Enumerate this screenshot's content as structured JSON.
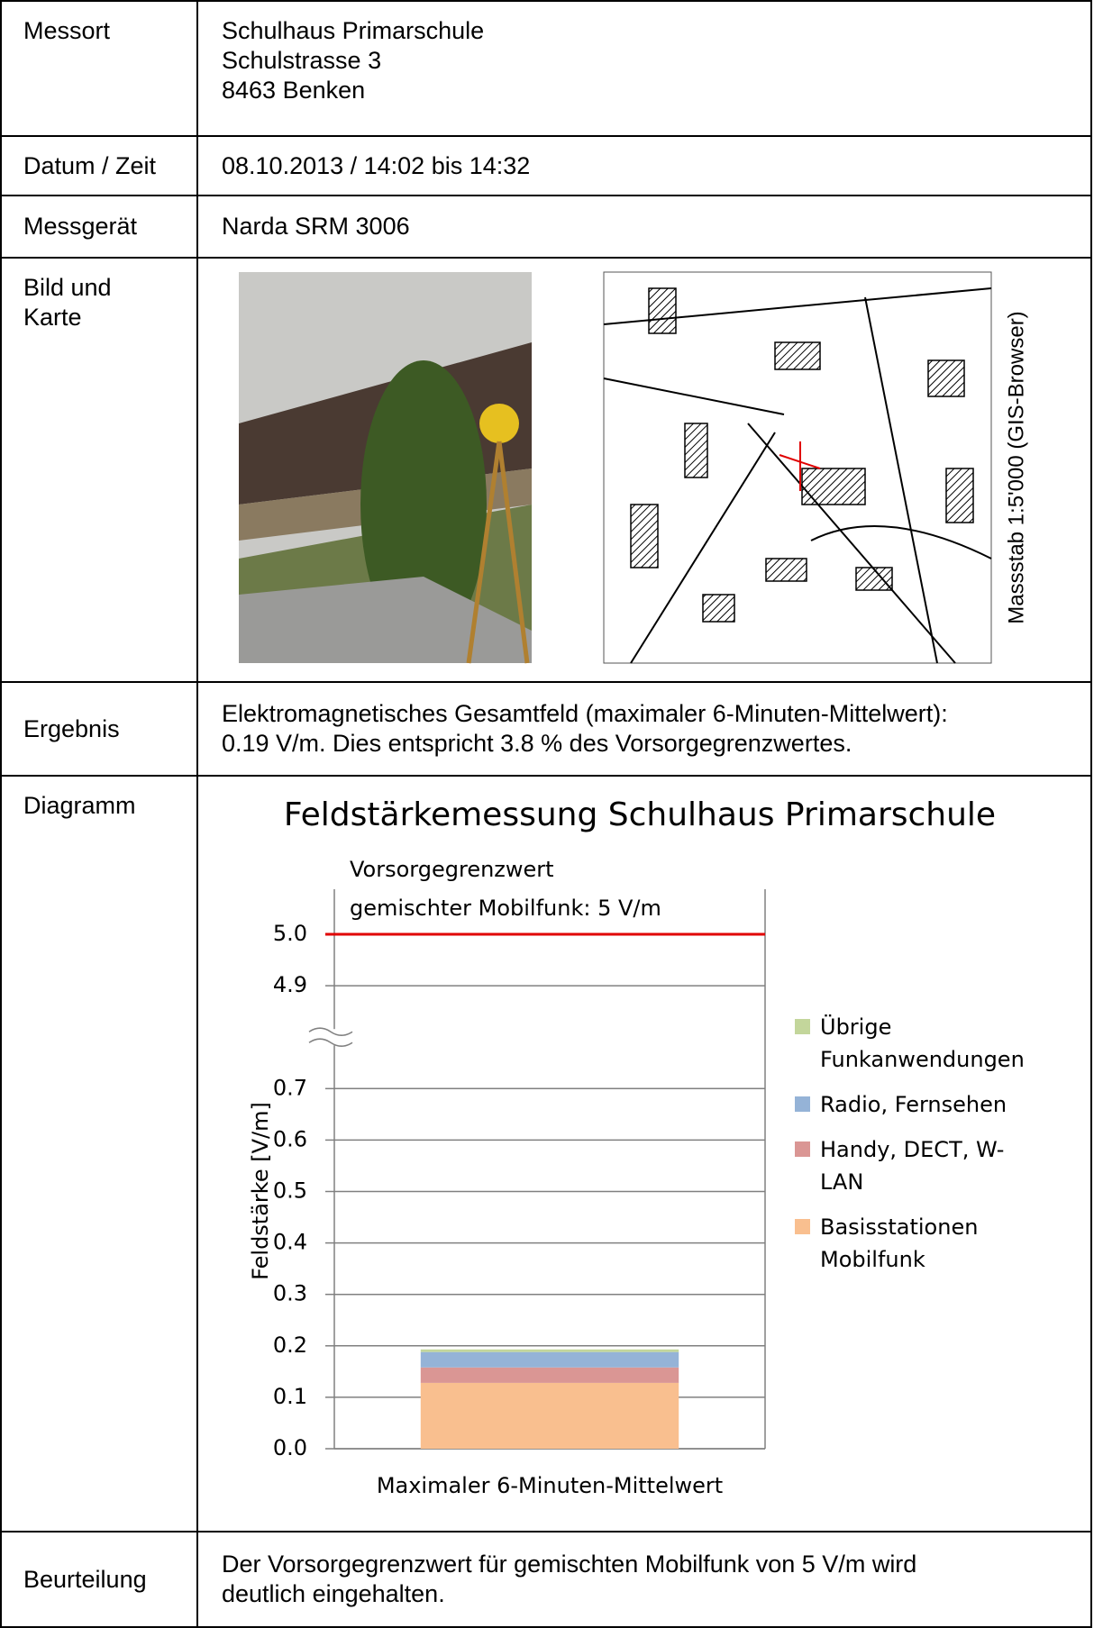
{
  "table": {
    "rows": [
      {
        "label": "Messort",
        "lines": [
          "Schulhaus Primarschule",
          "Schulstrasse 3",
          "8463 Benken"
        ]
      },
      {
        "label": "Datum / Zeit",
        "lines": [
          "08.10.2013 / 14:02 bis 14:32"
        ]
      },
      {
        "label": "Messgerät",
        "lines": [
          "Narda SRM 3006"
        ]
      },
      {
        "label": "Bild und Karte",
        "map_caption": "Massstab 1:5'000 (GIS-Browser)"
      },
      {
        "label": "Ergebnis",
        "lines": [
          "Elektromagnetisches Gesamtfeld (maximaler 6-Minuten-Mittelwert):",
          "0.19 V/m. Dies entspricht 3.8 % des Vorsorgegrenzwertes."
        ]
      },
      {
        "label": "Diagramm"
      },
      {
        "label": "Beurteilung",
        "lines": [
          "Der Vorsorgegrenzwert für gemischten Mobilfunk von 5 V/m wird",
          "deutlich eingehalten."
        ]
      }
    ]
  },
  "chart_data": {
    "type": "stacked_bar",
    "title": "Feldstärkemessung Schulhaus Primarschule",
    "categories": [
      "Maximaler 6-Minuten-Mittelwert"
    ],
    "y_label": "Feldstärke [V/m]",
    "series": [
      {
        "name": "Basisstationen Mobilfunk",
        "color": "#f9bf8f",
        "values": [
          0.128
        ]
      },
      {
        "name": "Handy, DECT, W-LAN",
        "color": "#da9694",
        "values": [
          0.03
        ]
      },
      {
        "name": "Radio, Fernsehen",
        "color": "#95b3d7",
        "values": [
          0.03
        ]
      },
      {
        "name": "Übrige Funkanwendungen",
        "color": "#c3d69b",
        "values": [
          0.005
        ]
      }
    ],
    "ylim": [
      0,
      5.0
    ],
    "yticks": [
      {
        "value": 0,
        "label": "0.0"
      },
      0.1,
      0.2,
      0.3,
      0.4,
      0.5,
      0.6,
      0.7,
      4.9,
      {
        "value": 5,
        "label": "5.0"
      }
    ],
    "axis_break": true,
    "grid": true,
    "reference_line": {
      "value": 5,
      "color": "#e00000",
      "label": [
        "Vorsorgegrenzwert",
        "gemischter Mobilfunk: 5 V/m"
      ]
    }
  }
}
